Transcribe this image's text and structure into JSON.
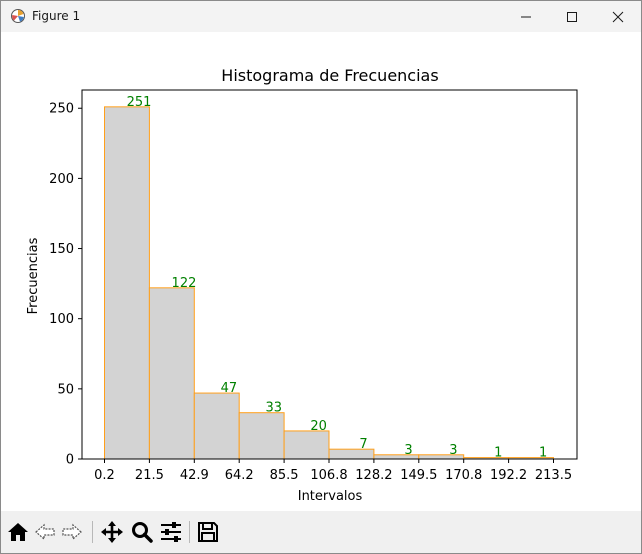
{
  "window": {
    "title": "Figure 1",
    "icon": "matplotlib-figure-icon",
    "controls": [
      "minimize-icon",
      "maximize-icon",
      "close-icon"
    ]
  },
  "toolbar": {
    "buttons": [
      "home-icon",
      "back-arrow-icon",
      "forward-arrow-icon",
      "pan-move-icon",
      "zoom-magnifier-icon",
      "configure-subplots-icon",
      "save-floppy-icon"
    ]
  },
  "chart_data": {
    "type": "bar",
    "title": "Histograma de Frecuencias",
    "xlabel": "Intervalos",
    "ylabel": "Frecuencias",
    "bin_edges": [
      "0.2",
      "21.5",
      "42.9",
      "64.2",
      "85.5",
      "106.8",
      "128.2",
      "149.5",
      "170.8",
      "192.2",
      "213.5"
    ],
    "values": [
      251,
      122,
      47,
      33,
      20,
      7,
      3,
      3,
      1,
      1
    ],
    "ylim": [
      0,
      263
    ],
    "y_ticks": [
      "0",
      "50",
      "100",
      "150",
      "200",
      "250"
    ],
    "bar_fill": "#d3d3d3",
    "bar_edge": "#ff9f1a",
    "label_color": "#008000",
    "grid": false,
    "legend": "none"
  }
}
